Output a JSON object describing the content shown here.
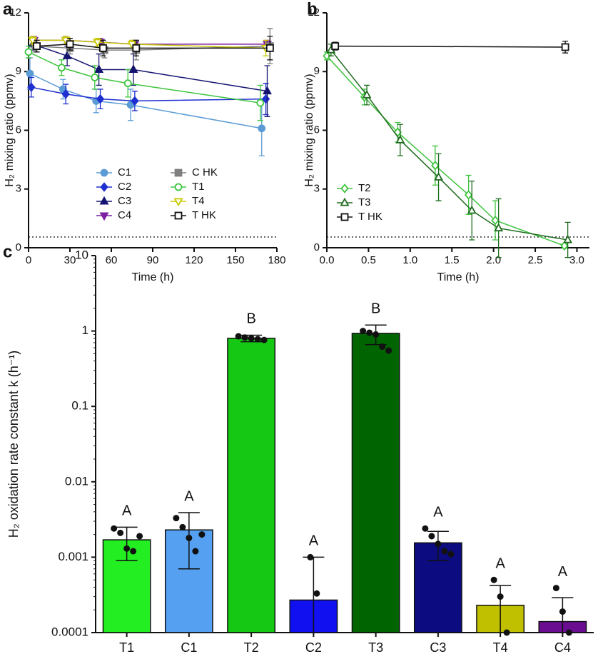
{
  "chart_data": [
    {
      "type": "line",
      "label": "a",
      "x_label": "Time (h)",
      "y_label": "H₂ mixing ratio (ppmv)",
      "xlim": [
        0,
        180
      ],
      "xticks": [
        0,
        30,
        60,
        90,
        120,
        150,
        180
      ],
      "ylim": [
        0,
        12
      ],
      "yticks": [
        0,
        3,
        6,
        9,
        12
      ],
      "hline": 0.55,
      "legend": "center",
      "series": [
        {
          "name": "C1",
          "color": "#5b9bd5",
          "marker": "circle",
          "filled": true,
          "x": [
            1,
            25,
            49,
            74,
            169
          ],
          "values": [
            8.9,
            8.1,
            7.5,
            7.3,
            6.1
          ],
          "errors": [
            0.8,
            0.5,
            0.6,
            0.8,
            1.4
          ]
        },
        {
          "name": "C2",
          "color": "#1f2fd0",
          "marker": "diamond",
          "filled": true,
          "x": [
            2,
            27,
            52,
            77,
            172
          ],
          "values": [
            8.2,
            7.85,
            7.6,
            7.5,
            7.6
          ],
          "errors": [
            0.5,
            0.5,
            0.5,
            0.5,
            0.8
          ]
        },
        {
          "name": "C3",
          "color": "#141470",
          "marker": "triangle-up",
          "filled": true,
          "x": [
            3,
            28,
            51,
            76,
            173
          ],
          "values": [
            10.4,
            9.8,
            9.1,
            9.1,
            8.0
          ],
          "errors": [
            0.3,
            0.5,
            0.8,
            0.8,
            1.3
          ]
        },
        {
          "name": "C4",
          "color": "#7b1fa2",
          "marker": "triangle-down",
          "filled": true,
          "x": [
            4,
            27,
            52,
            77,
            173
          ],
          "values": [
            10.6,
            10.6,
            10.5,
            10.4,
            10.4
          ],
          "errors": [
            0.2,
            0.2,
            0.2,
            0.2,
            0.2
          ]
        },
        {
          "name": "C HK",
          "color": "#7f7f7f",
          "marker": "square",
          "filled": true,
          "x": [
            5,
            30,
            55,
            78,
            175
          ],
          "values": [
            10.3,
            10.2,
            10.1,
            10.1,
            10.3
          ],
          "errors": [
            0.3,
            0.3,
            0.4,
            0.5,
            0.9
          ]
        },
        {
          "name": "T1",
          "color": "#3ec43e",
          "marker": "circle",
          "filled": false,
          "x": [
            0,
            24,
            48,
            72,
            168
          ],
          "values": [
            10.0,
            9.2,
            8.7,
            8.4,
            7.4
          ],
          "errors": [
            0.3,
            0.4,
            0.6,
            0.7,
            0.9
          ]
        },
        {
          "name": "T4",
          "color": "#c8c800",
          "marker": "triangle-down",
          "filled": false,
          "x": [
            3,
            27,
            50,
            75,
            172
          ],
          "values": [
            10.6,
            10.6,
            10.5,
            10.4,
            10.2
          ],
          "errors": [
            0.2,
            0.2,
            0.2,
            0.2,
            0.4
          ]
        },
        {
          "name": "T HK",
          "color": "#111111",
          "marker": "square",
          "filled": false,
          "x": [
            6,
            30,
            54,
            78,
            175
          ],
          "values": [
            10.3,
            10.4,
            10.2,
            10.2,
            10.2
          ],
          "errors": [
            0.3,
            0.3,
            0.4,
            0.4,
            0.6
          ]
        }
      ]
    },
    {
      "type": "line",
      "label": "b",
      "x_label": "Time (h)",
      "y_label": "H₂ mixing ratio (ppmv)",
      "xlim": [
        0,
        3.15
      ],
      "xticks": [
        {
          "value": 0,
          "label": "0.0"
        },
        {
          "value": 0.5,
          "label": "0.5"
        },
        {
          "value": 1,
          "label": "1.0"
        },
        {
          "value": 1.5,
          "label": "1.5"
        },
        {
          "value": 2,
          "label": "2.0"
        },
        {
          "value": 2.5,
          "label": "2.5"
        },
        {
          "value": 3,
          "label": "3.0"
        }
      ],
      "ylim": [
        0,
        12
      ],
      "yticks": [
        0,
        3,
        6,
        9,
        12
      ],
      "hline": 0.55,
      "legend": "lower-left",
      "series": [
        {
          "name": "T2",
          "color": "#3ec43e",
          "marker": "diamond",
          "filled": false,
          "x": [
            0,
            0.45,
            0.85,
            1.3,
            1.7,
            2.02,
            2.85
          ],
          "values": [
            9.8,
            7.7,
            5.9,
            4.2,
            2.7,
            1.4,
            0.1
          ],
          "errors": [
            0.2,
            0.4,
            0.5,
            1.0,
            1.0,
            1.0,
            0.1
          ]
        },
        {
          "name": "T3",
          "color": "#1e6b1e",
          "marker": "triangle-up",
          "filled": false,
          "x": [
            0.05,
            0.48,
            0.88,
            1.34,
            1.74,
            2.06,
            2.89
          ],
          "values": [
            10.1,
            7.8,
            5.5,
            3.6,
            1.9,
            1.0,
            0.4
          ],
          "errors": [
            0.3,
            0.5,
            0.8,
            1.2,
            1.5,
            1.5,
            0.9
          ]
        },
        {
          "name": "T HK",
          "color": "#111111",
          "marker": "square",
          "filled": false,
          "x": [
            0.1,
            2.86
          ],
          "values": [
            10.3,
            10.25
          ],
          "errors": [
            0.2,
            0.3
          ]
        }
      ]
    },
    {
      "type": "bar",
      "label": "c",
      "y_label": "H₂ oxidation rate constant k (h⁻¹)",
      "log_y": true,
      "ylim": [
        0.0001,
        10
      ],
      "yticks": [
        0.0001,
        0.001,
        0.01,
        0.1,
        1,
        10
      ],
      "categories": [
        "T1",
        "C1",
        "T2",
        "C2",
        "T3",
        "C3",
        "T4",
        "C4"
      ],
      "values": [
        0.0017,
        0.0023,
        0.8,
        0.00027,
        0.93,
        0.00155,
        0.00023,
        0.00014
      ],
      "errors": [
        0.0008,
        0.0016,
        0.08,
        0.00073,
        0.27,
        0.00065,
        0.00019,
        0.00015
      ],
      "colors": [
        "#22ee22",
        "#55a0f0",
        "#14c814",
        "#1010f0",
        "#006400",
        "#0c0c80",
        "#c0c000",
        "#6a0d91"
      ],
      "letters": [
        "A",
        "A",
        "B",
        "A",
        "B",
        "A",
        "A",
        "A"
      ],
      "points": [
        [
          0.0024,
          0.0021,
          0.0013,
          0.0012,
          0.0019
        ],
        [
          0.0033,
          0.0025,
          0.0018,
          0.0012,
          0.002
        ],
        [
          0.85,
          0.82,
          0.8,
          0.78,
          0.76
        ],
        [
          0.001,
          0.00033
        ],
        [
          1.0,
          0.95,
          0.9,
          0.62,
          0.55
        ],
        [
          0.0024,
          0.0019,
          0.0015,
          0.0012,
          0.0011
        ],
        [
          0.0005,
          0.0003,
          0.0001
        ],
        [
          0.00039,
          0.00019,
          0.0001
        ]
      ]
    }
  ]
}
